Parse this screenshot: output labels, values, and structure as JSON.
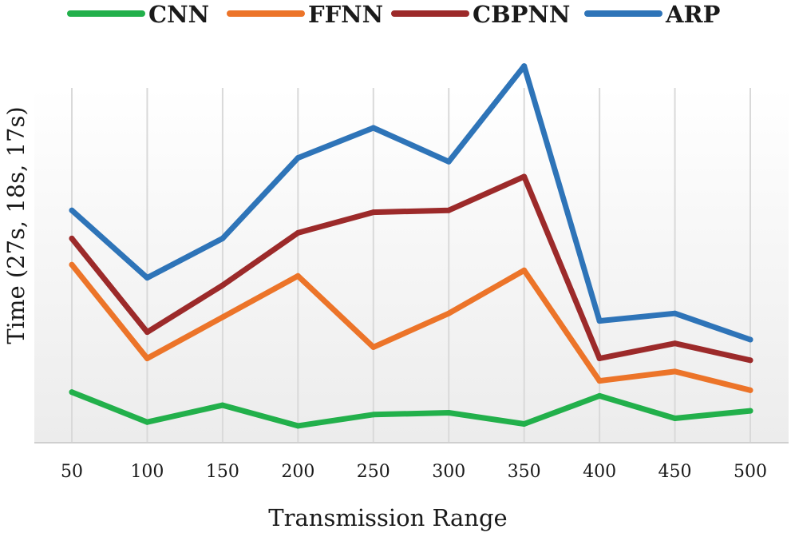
{
  "chart_data": {
    "type": "line",
    "title": "",
    "xlabel": "Transmission Range",
    "ylabel": "Time (27s, 18s, 17s)",
    "x": [
      50,
      100,
      150,
      200,
      250,
      300,
      350,
      400,
      450,
      500
    ],
    "x_tick_labels": [
      "50",
      "100",
      "150",
      "200",
      "250",
      "300",
      "350",
      "400",
      "450",
      "500"
    ],
    "ylim": [
      0,
      100
    ],
    "y_ticks_shown": false,
    "grid": "vertical",
    "legend_position": "top",
    "series": [
      {
        "name": "CNN",
        "color": "#22b04b",
        "values": [
          13.5,
          5.5,
          10,
          4.5,
          7.5,
          8,
          5,
          12.5,
          6.5,
          8.5
        ]
      },
      {
        "name": "FFNN",
        "color": "#ec7429",
        "values": [
          47.5,
          22.5,
          33.5,
          44.5,
          25.5,
          34.5,
          46,
          16.5,
          19,
          14
        ]
      },
      {
        "name": "CBPNN",
        "color": "#9c2a2a",
        "values": [
          54.5,
          29.5,
          42,
          56,
          61.5,
          62,
          71,
          22.5,
          26.5,
          22
        ]
      },
      {
        "name": "ARP",
        "color": "#2e74b8",
        "values": [
          62,
          44,
          54.5,
          76,
          84,
          75,
          100.5,
          32.5,
          34.5,
          27.5
        ]
      }
    ]
  }
}
